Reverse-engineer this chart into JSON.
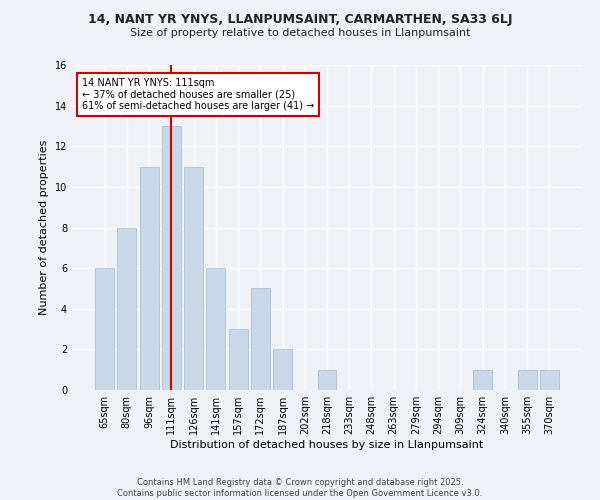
{
  "title": "14, NANT YR YNYS, LLANPUMSAINT, CARMARTHEN, SA33 6LJ",
  "subtitle": "Size of property relative to detached houses in Llanpumsaint",
  "xlabel": "Distribution of detached houses by size in Llanpumsaint",
  "ylabel": "Number of detached properties",
  "categories": [
    "65sqm",
    "80sqm",
    "96sqm",
    "111sqm",
    "126sqm",
    "141sqm",
    "157sqm",
    "172sqm",
    "187sqm",
    "202sqm",
    "218sqm",
    "233sqm",
    "248sqm",
    "263sqm",
    "279sqm",
    "294sqm",
    "309sqm",
    "324sqm",
    "340sqm",
    "355sqm",
    "370sqm"
  ],
  "values": [
    6,
    8,
    11,
    13,
    11,
    6,
    3,
    5,
    2,
    0,
    1,
    0,
    0,
    0,
    0,
    0,
    0,
    1,
    0,
    1,
    1
  ],
  "bar_color": "#c8d8e8",
  "bar_edgecolor": "#a0b8cc",
  "vline_x_idx": 3,
  "vline_color": "#cc0000",
  "annotation_line1": "14 NANT YR YNYS: 111sqm",
  "annotation_line2": "← 37% of detached houses are smaller (25)",
  "annotation_line3": "61% of semi-detached houses are larger (41) →",
  "annotation_box_color": "#ffffff",
  "annotation_box_edgecolor": "#cc0000",
  "ylim": [
    0,
    16
  ],
  "yticks": [
    0,
    2,
    4,
    6,
    8,
    10,
    12,
    14,
    16
  ],
  "bg_color": "#eef2f7",
  "grid_color": "#ffffff",
  "title_fontsize": 9,
  "subtitle_fontsize": 8,
  "xlabel_fontsize": 8,
  "ylabel_fontsize": 8,
  "tick_fontsize": 7,
  "annotation_fontsize": 7,
  "footer": "Contains HM Land Registry data © Crown copyright and database right 2025.\nContains public sector information licensed under the Open Government Licence v3.0."
}
